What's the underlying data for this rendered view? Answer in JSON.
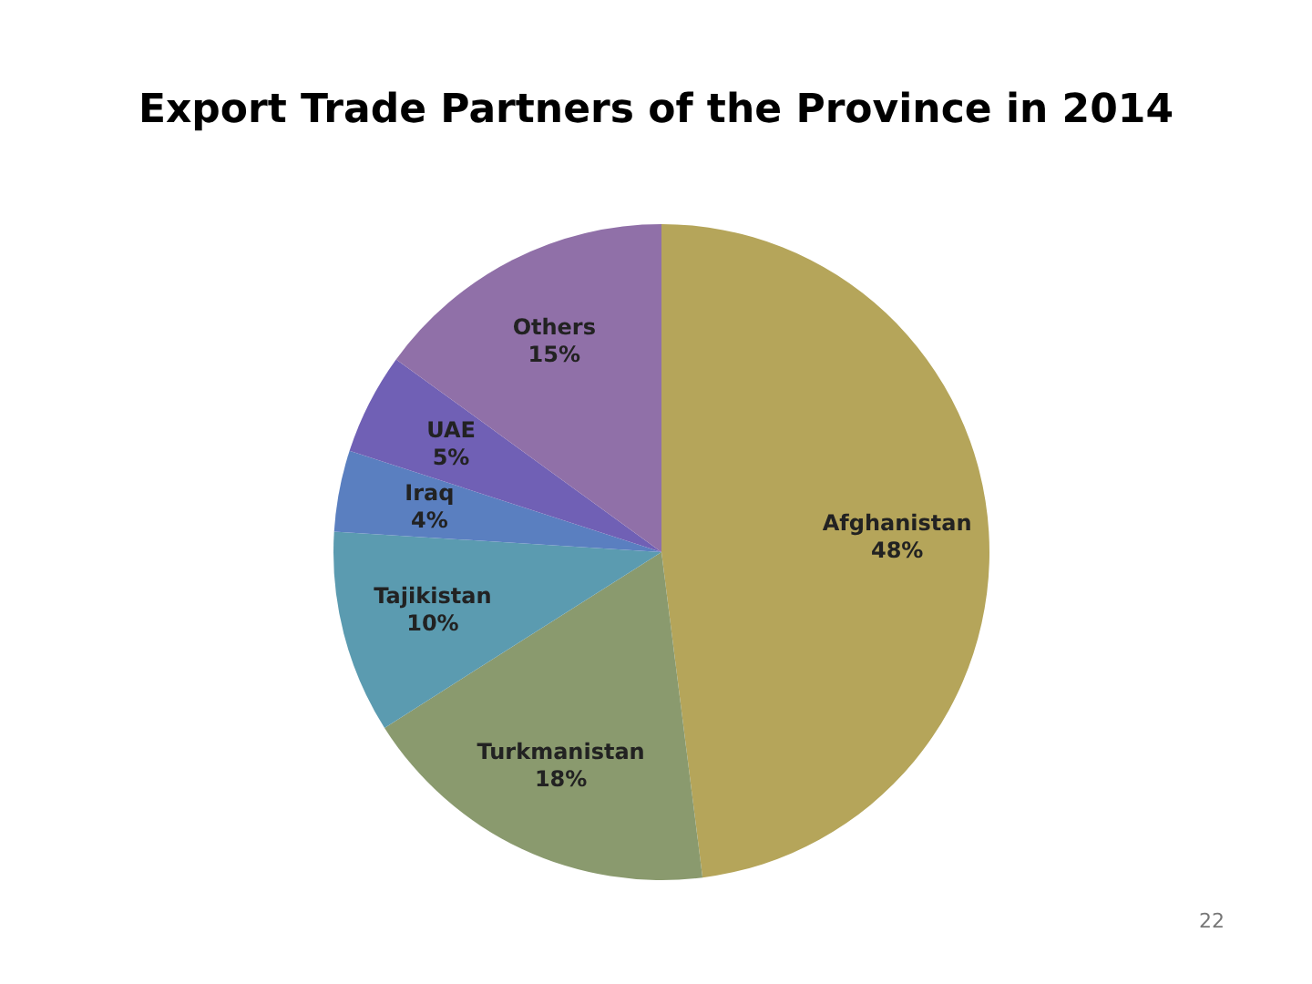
{
  "chart_data": {
    "type": "pie",
    "title": "Export Trade Partners of the Province in 2014",
    "categories": [
      "Afghanistan",
      "Turkmanistan",
      "Tajikistan",
      "Iraq",
      "UAE",
      "Others"
    ],
    "values": [
      48,
      18,
      10,
      4,
      5,
      15
    ],
    "value_labels": [
      "48%",
      "18%",
      "10%",
      "4%",
      "5%",
      "15%"
    ],
    "colors": [
      "#b5a55a",
      "#8a9a6e",
      "#5b9bb0",
      "#5a7fc0",
      "#7060b5",
      "#9070a8"
    ],
    "legend": false,
    "annotations": [
      "22"
    ]
  }
}
